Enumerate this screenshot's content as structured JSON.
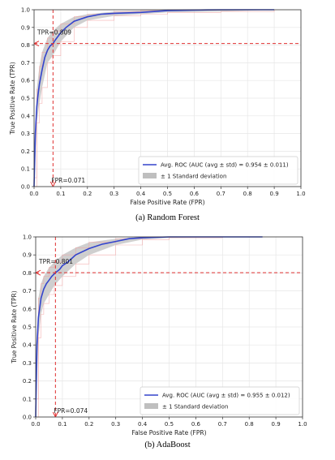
{
  "chart_data": [
    {
      "type": "line",
      "caption": "(a)    Random Forest",
      "xlabel": "False Positive Rate (FPR)",
      "ylabel": "True Positive Rate (TPR)",
      "xlim": [
        0.0,
        1.0
      ],
      "ylim": [
        0.0,
        1.0
      ],
      "xticks": [
        "0.0",
        "0.1",
        "0.2",
        "0.3",
        "0.4",
        "0.5",
        "0.6",
        "0.7",
        "0.8",
        "0.9",
        "1.0"
      ],
      "yticks": [
        "0.0",
        "0.1",
        "0.2",
        "0.3",
        "0.4",
        "0.5",
        "0.6",
        "0.7",
        "0.8",
        "0.9",
        "1.0"
      ],
      "grid": true,
      "legend_position": "bottom-right",
      "series": [
        {
          "name": "Avg. ROC (AUC (avg ± std) = 0.954 ± 0.011)",
          "color": "#3344cc",
          "x": [
            0.0,
            0.005,
            0.01,
            0.015,
            0.02,
            0.03,
            0.04,
            0.05,
            0.06,
            0.071,
            0.08,
            0.1,
            0.12,
            0.15,
            0.2,
            0.25,
            0.3,
            0.4,
            0.5,
            0.6,
            0.7,
            0.8,
            0.9
          ],
          "y": [
            0.0,
            0.3,
            0.45,
            0.52,
            0.58,
            0.66,
            0.73,
            0.77,
            0.795,
            0.809,
            0.83,
            0.87,
            0.9,
            0.935,
            0.96,
            0.975,
            0.98,
            0.985,
            0.995,
            0.998,
            1.0,
            1.0,
            1.0
          ]
        }
      ],
      "std_band": {
        "name": "± 1 Standard deviation",
        "color": "#bfbfbf",
        "x": [
          0.0,
          0.01,
          0.02,
          0.03,
          0.05,
          0.07,
          0.1,
          0.15,
          0.2,
          0.3,
          0.4,
          0.5,
          0.7,
          0.9
        ],
        "upper": [
          0.05,
          0.55,
          0.68,
          0.76,
          0.84,
          0.88,
          0.92,
          0.96,
          0.975,
          0.99,
          0.995,
          1.0,
          1.0,
          1.0
        ],
        "lower": [
          0.0,
          0.36,
          0.47,
          0.56,
          0.7,
          0.74,
          0.82,
          0.9,
          0.94,
          0.965,
          0.975,
          0.985,
          0.99,
          1.0
        ]
      },
      "reference_lines": {
        "tpr": 0.809,
        "fpr": 0.071,
        "color": "#e03030"
      },
      "annotations": {
        "tpr_label": "TPR=0.809",
        "fpr_label": "FPR=0.071"
      }
    },
    {
      "type": "line",
      "caption": "(b)    AdaBoost",
      "xlabel": "False Positive Rate (FPR)",
      "ylabel": "True Positive Rate (TPR)",
      "xlim": [
        0.0,
        1.0
      ],
      "ylim": [
        0.0,
        1.0
      ],
      "xticks": [
        "0.0",
        "0.1",
        "0.2",
        "0.3",
        "0.4",
        "0.5",
        "0.6",
        "0.7",
        "0.8",
        "0.9",
        "1.0"
      ],
      "yticks": [
        "0.0",
        "0.1",
        "0.2",
        "0.3",
        "0.4",
        "0.5",
        "0.6",
        "0.7",
        "0.8",
        "0.9",
        "1.0"
      ],
      "grid": true,
      "legend_position": "bottom-right",
      "series": [
        {
          "name": "Avg. ROC (AUC (avg ± std) = 0.955 ± 0.012)",
          "color": "#3344cc",
          "x": [
            0.0,
            0.005,
            0.01,
            0.02,
            0.03,
            0.04,
            0.05,
            0.06,
            0.074,
            0.09,
            0.1,
            0.12,
            0.15,
            0.2,
            0.25,
            0.3,
            0.35,
            0.4,
            0.5,
            0.6,
            0.7,
            0.85
          ],
          "y": [
            0.0,
            0.4,
            0.55,
            0.66,
            0.71,
            0.74,
            0.76,
            0.78,
            0.801,
            0.82,
            0.84,
            0.86,
            0.9,
            0.935,
            0.96,
            0.975,
            0.99,
            0.995,
            1.0,
            1.0,
            1.0,
            1.0
          ]
        }
      ],
      "std_band": {
        "name": "± 1 Standard deviation",
        "color": "#bfbfbf",
        "x": [
          0.0,
          0.01,
          0.02,
          0.03,
          0.05,
          0.07,
          0.1,
          0.15,
          0.2,
          0.3,
          0.4,
          0.5,
          0.7,
          0.85
        ],
        "upper": [
          0.1,
          0.66,
          0.74,
          0.78,
          0.83,
          0.86,
          0.9,
          0.94,
          0.97,
          0.99,
          1.0,
          1.0,
          1.0,
          1.0
        ],
        "lower": [
          0.0,
          0.44,
          0.57,
          0.63,
          0.68,
          0.73,
          0.78,
          0.85,
          0.9,
          0.955,
          0.985,
          0.995,
          1.0,
          1.0
        ]
      },
      "reference_lines": {
        "tpr": 0.801,
        "fpr": 0.074,
        "color": "#e03030"
      },
      "annotations": {
        "tpr_label": "TPR=0.801",
        "fpr_label": "FPR=0.074"
      }
    }
  ]
}
